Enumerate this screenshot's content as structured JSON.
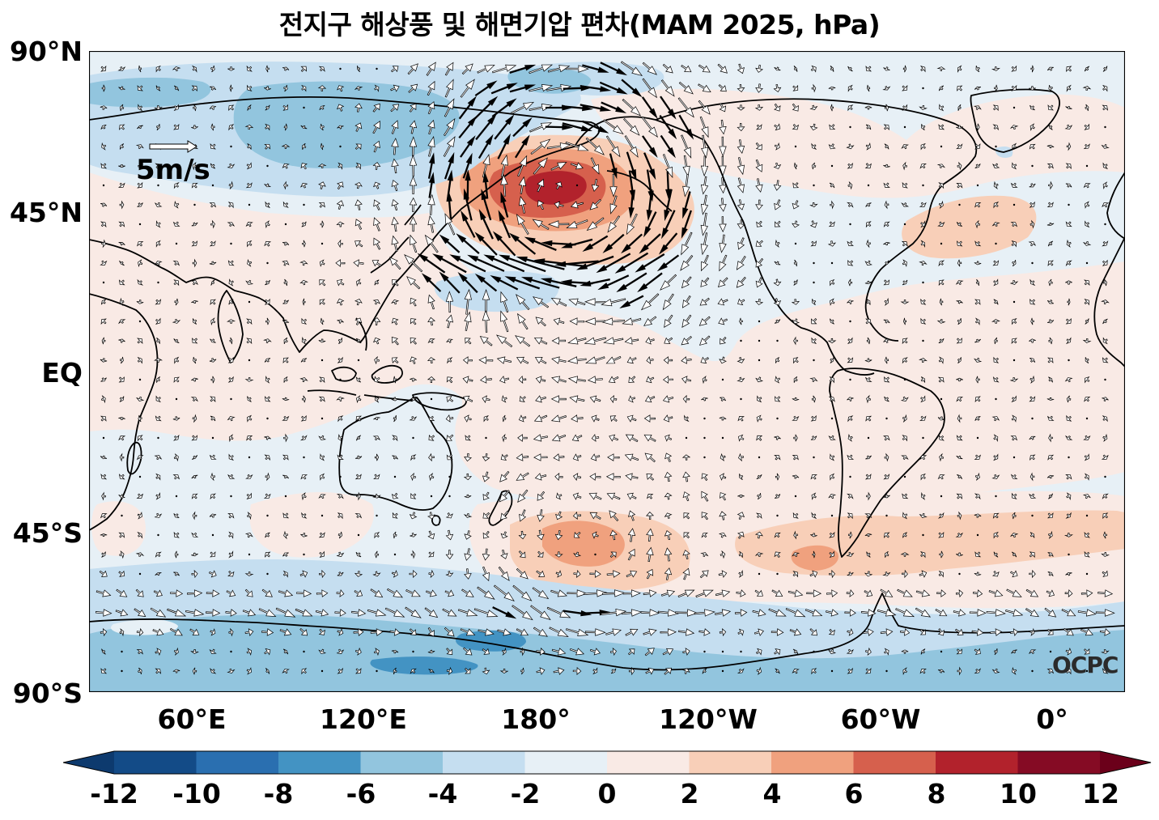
{
  "title": "전지구 해상풍 및 해면기압 편차(MAM 2025, hPa)",
  "lat_labels": [
    "90°N",
    "45°N",
    "EQ",
    "45°S",
    "90°S"
  ],
  "lon_labels": [
    "60°E",
    "120°E",
    "180°",
    "120°W",
    "60°W",
    "0°"
  ],
  "scale_arrow": {
    "label": "5m/s",
    "speed_ms": 5
  },
  "logo": "OCPC",
  "colorbar": {
    "tick_labels": [
      "-12",
      "-10",
      "-8",
      "-6",
      "-4",
      "-2",
      "0",
      "2",
      "4",
      "6",
      "8",
      "10",
      "12"
    ],
    "colors": [
      "#134b87",
      "#2a6fb0",
      "#4393c3",
      "#92c5de",
      "#c5def0",
      "#e7f0f6",
      "#f9eae5",
      "#f8cfb8",
      "#f0a17e",
      "#d6604d",
      "#b2222c",
      "#850b24"
    ],
    "under_color": "#0d3a6e",
    "over_color": "#6b001a"
  },
  "map_colors": {
    "land_outline": "#000000",
    "arrow_fill_light": "#ffffff",
    "arrow_fill_strong": "#000000"
  }
}
